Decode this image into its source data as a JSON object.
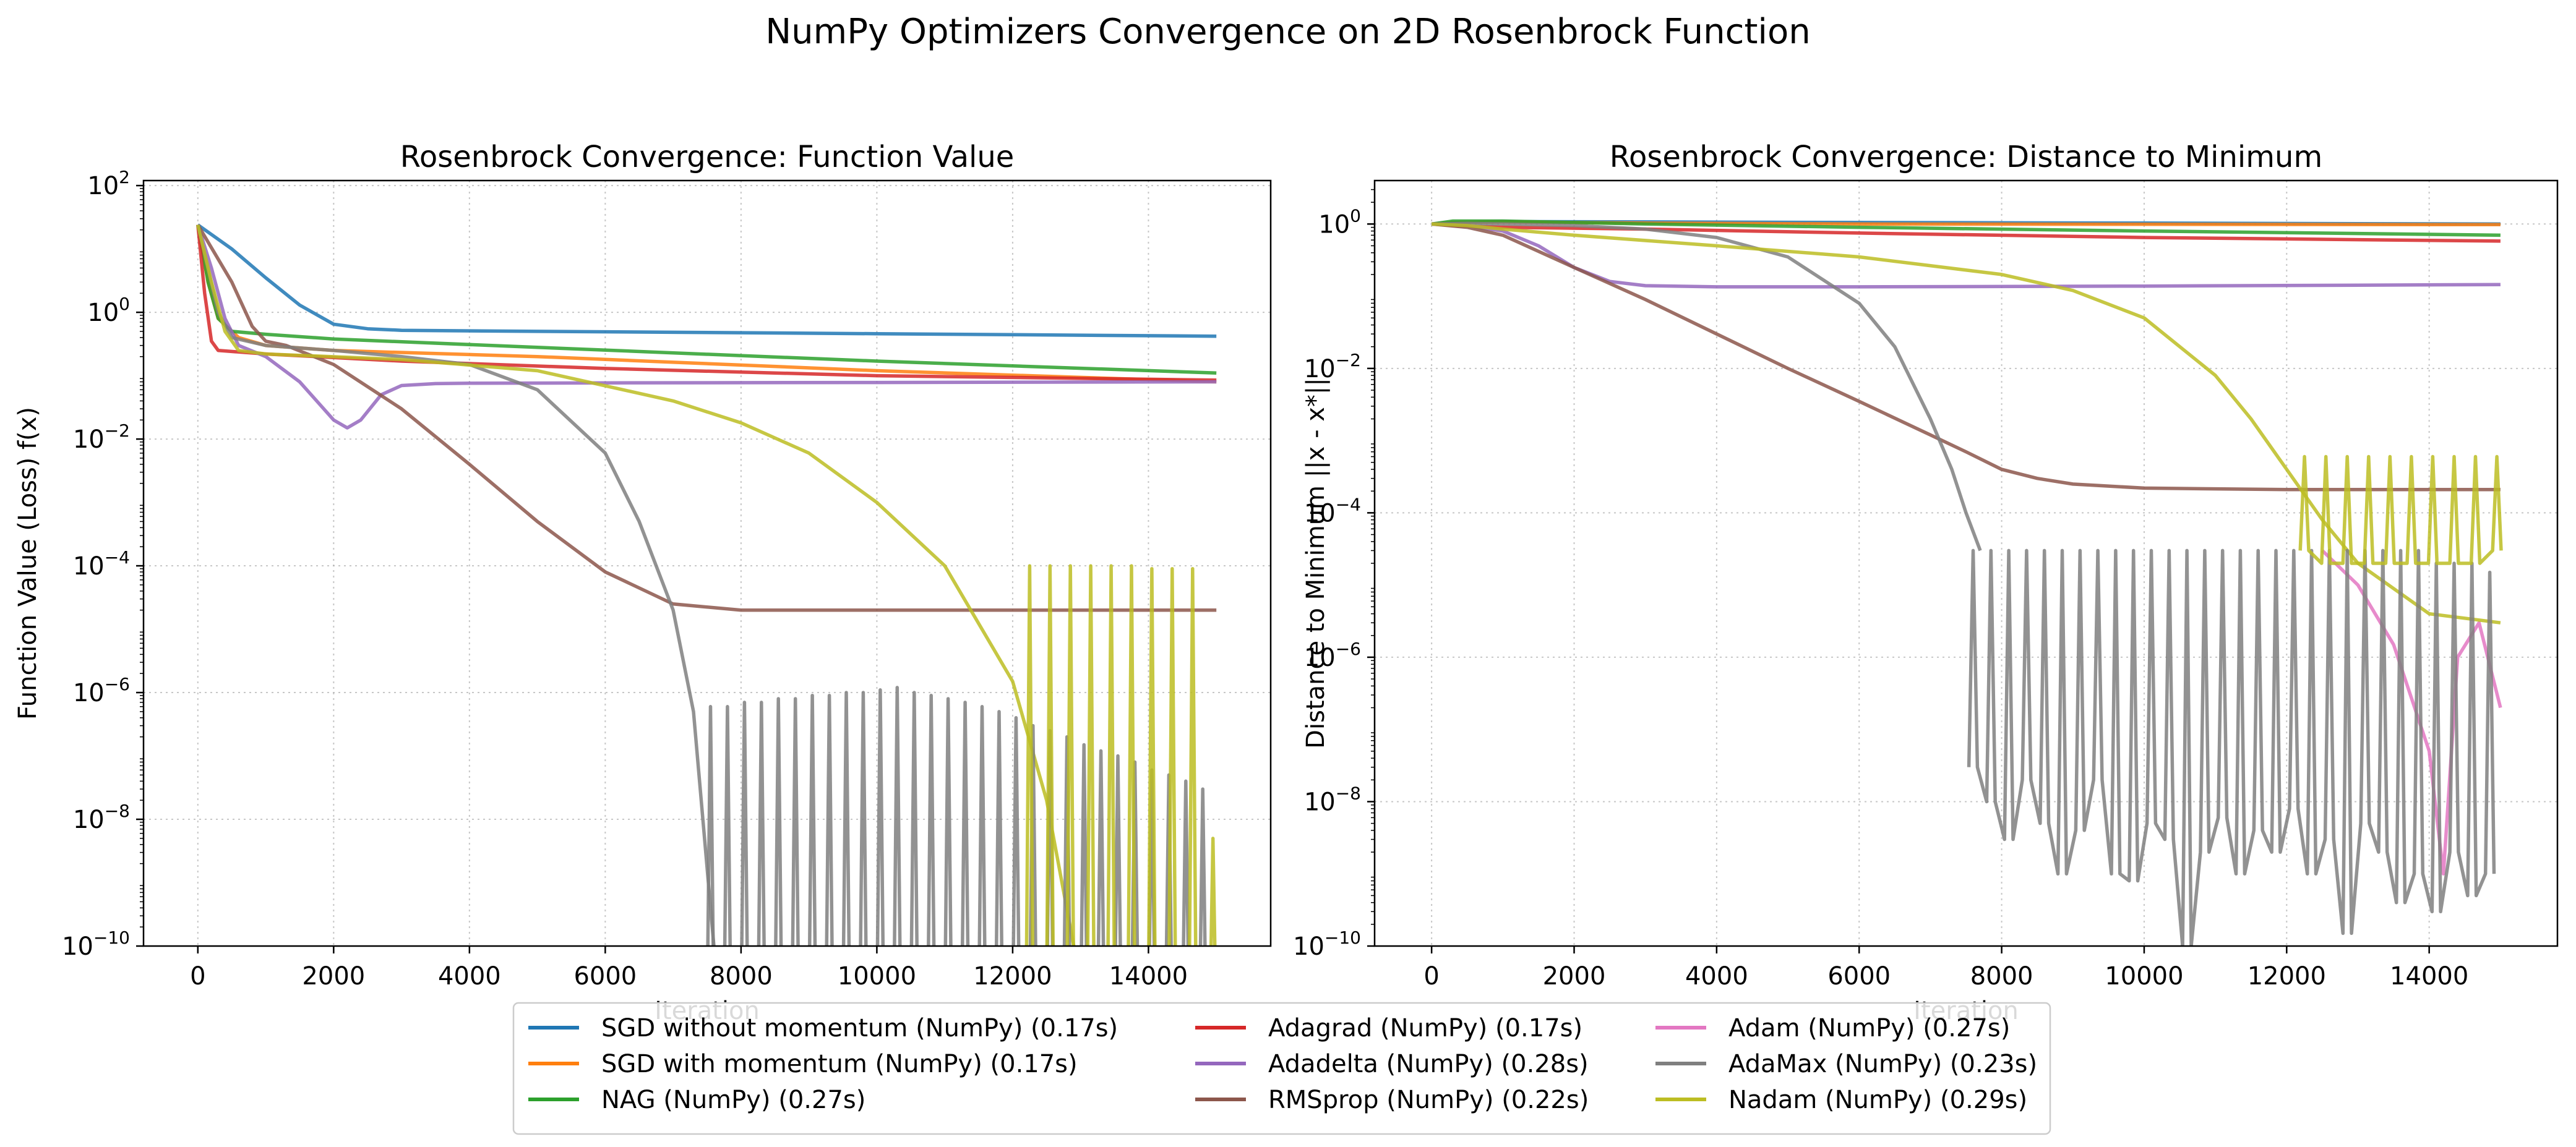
{
  "figure": {
    "suptitle": "NumPy Optimizers Convergence on 2D Rosenbrock Function"
  },
  "colors": {
    "SGD without momentum (NumPy) (0.17s)": "#1f77b4",
    "SGD with momentum (NumPy) (0.17s)": "#ff7f0e",
    "NAG (NumPy) (0.27s)": "#2ca02c",
    "Adagrad (NumPy) (0.17s)": "#d62728",
    "Adadelta (NumPy) (0.28s)": "#9467bd",
    "RMSprop (NumPy) (0.22s)": "#8c564b",
    "Adam (NumPy) (0.27s)": "#e377c2",
    "AdaMax (NumPy) (0.23s)": "#7f7f7f",
    "Nadam (NumPy) (0.29s)": "#bcbd22"
  },
  "legend": {
    "placement": "lower center, below plots",
    "columns": [
      [
        "SGD without momentum (NumPy) (0.17s)",
        "SGD with momentum (NumPy) (0.17s)",
        "NAG (NumPy) (0.27s)"
      ],
      [
        "Adagrad (NumPy) (0.17s)",
        "Adadelta (NumPy) (0.28s)",
        "RMSprop (NumPy) (0.22s)"
      ],
      [
        "Adam (NumPy) (0.27s)",
        "AdaMax (NumPy) (0.23s)",
        "Nadam (NumPy) (0.29s)"
      ]
    ]
  },
  "chart_data": [
    {
      "type": "line",
      "title": "Rosenbrock Convergence: Function Value",
      "xlabel": "Iteration",
      "ylabel": "Function Value (Loss) f(x)",
      "yscale": "log",
      "xlim": [
        -800,
        15800
      ],
      "ylim": [
        1e-10,
        120
      ],
      "xticks": [
        0,
        2000,
        4000,
        6000,
        8000,
        10000,
        12000,
        14000
      ],
      "yticks": [
        1e-10,
        1e-08,
        1e-06,
        0.0001,
        0.01,
        1,
        100
      ],
      "ytick_labels": [
        [
          "10",
          "−10"
        ],
        [
          "10",
          "−8"
        ],
        [
          "10",
          "−6"
        ],
        [
          "10",
          "−4"
        ],
        [
          "10",
          "−2"
        ],
        [
          "10",
          "0"
        ],
        [
          "10",
          "2"
        ]
      ],
      "grid": true,
      "series": [
        {
          "name": "SGD with momentum (NumPy) (0.17s)",
          "x": [
            0,
            150,
            300,
            600,
            1000,
            2000,
            5000,
            10000,
            15000
          ],
          "y": [
            24,
            3,
            0.8,
            0.4,
            0.3,
            0.25,
            0.2,
            0.12,
            0.08
          ]
        },
        {
          "name": "NAG (NumPy) (0.27s)",
          "x": [
            0,
            150,
            300,
            500,
            1000,
            2000,
            5000,
            10000,
            15000
          ],
          "y": [
            24,
            3,
            0.8,
            0.5,
            0.45,
            0.38,
            0.28,
            0.17,
            0.11
          ]
        },
        {
          "name": "Adagrad (NumPy) (0.17s)",
          "x": [
            0,
            100,
            200,
            300,
            1000,
            3000,
            6000,
            10000,
            15000
          ],
          "y": [
            24,
            2,
            0.35,
            0.25,
            0.22,
            0.17,
            0.13,
            0.1,
            0.085
          ]
        },
        {
          "name": "SGD without momentum (NumPy) (0.17s)",
          "x": [
            0,
            500,
            1000,
            1500,
            2000,
            2500,
            3000,
            5000,
            10000,
            15000
          ],
          "y": [
            24,
            10,
            3.5,
            1.3,
            0.65,
            0.55,
            0.52,
            0.5,
            0.46,
            0.42
          ]
        },
        {
          "name": "Adadelta (NumPy) (0.28s)",
          "x": [
            0,
            200,
            400,
            600,
            1000,
            1500,
            2000,
            2200,
            2400,
            2700,
            3000,
            3500,
            4000,
            6000,
            10000,
            15000
          ],
          "y": [
            24,
            5,
            0.8,
            0.3,
            0.2,
            0.08,
            0.02,
            0.015,
            0.02,
            0.05,
            0.07,
            0.075,
            0.076,
            0.077,
            0.078,
            0.08
          ]
        },
        {
          "name": "RMSprop (NumPy) (0.22s)",
          "x": [
            0,
            500,
            800,
            1000,
            1300,
            2000,
            3000,
            4000,
            5000,
            6000,
            7000,
            8000,
            10000,
            15000
          ],
          "y": [
            24,
            3,
            0.6,
            0.35,
            0.3,
            0.15,
            0.03,
            0.004,
            0.0005,
            8e-05,
            2.5e-05,
            2e-05,
            2e-05,
            2e-05
          ]
        },
        {
          "name": "AdaMax (NumPy) (0.23s)",
          "x": [
            0,
            300,
            500,
            1000,
            2000,
            3000,
            4000,
            5000,
            6000,
            6500,
            7000,
            7300,
            7600
          ],
          "y": [
            24,
            1,
            0.4,
            0.3,
            0.25,
            0.2,
            0.15,
            0.06,
            0.006,
            0.0005,
            2e-05,
            5e-07,
            1e-10
          ]
        },
        {
          "name": "Nadam (NumPy) (0.29s)",
          "x": [
            0,
            200,
            400,
            600,
            1000,
            3000,
            5000,
            7000,
            8000,
            9000,
            10000,
            11000,
            12000,
            12500,
            12900
          ],
          "y": [
            24,
            3,
            0.5,
            0.25,
            0.22,
            0.18,
            0.12,
            0.04,
            0.018,
            0.006,
            0.001,
            0.0001,
            1.5e-06,
            2e-08,
            1e-10
          ]
        }
      ],
      "spikes": [
        {
          "name": "AdaMax (NumPy) (0.23s)",
          "x": [
            7550,
            7800,
            8050,
            8300,
            8550,
            8800,
            9050,
            9300,
            9550,
            9800,
            10050,
            10300,
            10550,
            10800,
            11050,
            11300,
            11550,
            11800,
            12050,
            12300,
            12550,
            12800,
            13050,
            13300,
            13550,
            13800,
            14050,
            14300,
            14550,
            14800
          ],
          "y": [
            6e-07,
            6e-07,
            7e-07,
            7e-07,
            8e-07,
            8e-07,
            9e-07,
            9e-07,
            1e-06,
            1e-06,
            1.1e-06,
            1.2e-06,
            1e-06,
            9e-07,
            8e-07,
            7e-07,
            6e-07,
            5e-07,
            4e-07,
            3e-07,
            2.5e-07,
            2e-07,
            1.5e-07,
            1.2e-07,
            1e-07,
            8e-08,
            6e-08,
            5e-08,
            4e-08,
            3e-08
          ]
        },
        {
          "name": "Nadam (NumPy) (0.29s)",
          "x": [
            12250,
            12550,
            12850,
            13150,
            13450,
            13750,
            14050,
            14350,
            14650,
            14950
          ],
          "y": [
            0.0001,
            0.0001,
            0.0001,
            0.0001,
            0.0001,
            0.0001,
            9e-05,
            9e-05,
            9e-05,
            5e-09
          ]
        }
      ]
    },
    {
      "type": "line",
      "title": "Rosenbrock Convergence: Distance to Minimum",
      "xlabel": "Iteration",
      "ylabel": "Distance to Minimum ||x - x*||",
      "yscale": "log",
      "xlim": [
        -800,
        15800
      ],
      "ylim": [
        1e-10,
        4
      ],
      "xticks": [
        0,
        2000,
        4000,
        6000,
        8000,
        10000,
        12000,
        14000
      ],
      "yticks": [
        1e-10,
        1e-08,
        1e-06,
        0.0001,
        0.01,
        1
      ],
      "ytick_labels": [
        [
          "10",
          "−10"
        ],
        [
          "10",
          "−8"
        ],
        [
          "10",
          "−6"
        ],
        [
          "10",
          "−4"
        ],
        [
          "10",
          "−2"
        ],
        [
          "10",
          "0"
        ]
      ],
      "grid": true,
      "series": [
        {
          "name": "SGD without momentum (NumPy) (0.17s)",
          "x": [
            0,
            300,
            1000,
            3000,
            6000,
            10000,
            15000
          ],
          "y": [
            1.0,
            1.05,
            1.08,
            1.07,
            1.05,
            1.03,
            1.0
          ]
        },
        {
          "name": "SGD with momentum (NumPy) (0.17s)",
          "x": [
            0,
            300,
            1000,
            3000,
            6000,
            10000,
            15000
          ],
          "y": [
            1.0,
            1.05,
            1.07,
            1.03,
            1.0,
            0.99,
            0.98
          ]
        },
        {
          "name": "NAG (NumPy) (0.27s)",
          "x": [
            0,
            300,
            1000,
            3000,
            6000,
            10000,
            15000
          ],
          "y": [
            1.0,
            1.1,
            1.1,
            1.0,
            0.9,
            0.8,
            0.7
          ]
        },
        {
          "name": "Adagrad (NumPy) (0.17s)",
          "x": [
            0,
            300,
            1000,
            3000,
            6000,
            10000,
            15000
          ],
          "y": [
            1.0,
            0.95,
            0.9,
            0.85,
            0.75,
            0.65,
            0.58
          ]
        },
        {
          "name": "Adadelta (NumPy) (0.28s)",
          "x": [
            0,
            500,
            1000,
            1500,
            2000,
            2500,
            3000,
            4000,
            6000,
            10000,
            15000
          ],
          "y": [
            1.0,
            0.95,
            0.8,
            0.5,
            0.25,
            0.16,
            0.14,
            0.135,
            0.135,
            0.138,
            0.145
          ]
        },
        {
          "name": "RMSprop (NumPy) (0.22s)",
          "x": [
            0,
            500,
            1000,
            2000,
            3000,
            4000,
            5000,
            6000,
            7000,
            7500,
            8000,
            8500,
            9000,
            10000,
            12000,
            15000
          ],
          "y": [
            1.0,
            0.9,
            0.7,
            0.25,
            0.09,
            0.03,
            0.01,
            0.0035,
            0.0012,
            0.0007,
            0.0004,
            0.0003,
            0.00025,
            0.00022,
            0.00021,
            0.00021
          ]
        },
        {
          "name": "Adam (NumPy) (0.27s)",
          "x": [
            12500,
            13000,
            13500,
            14000,
            14200,
            14400,
            14700,
            15000
          ],
          "y": [
            3e-05,
            1e-05,
            1.5e-06,
            5e-08,
            1e-09,
            1e-06,
            3e-06,
            2e-07
          ]
        },
        {
          "name": "AdaMax (NumPy) (0.23s)",
          "x": [
            0,
            500,
            1000,
            2000,
            3000,
            4000,
            5000,
            6000,
            6500,
            7000,
            7300,
            7500,
            7700
          ],
          "y": [
            1.0,
            1.02,
            1.0,
            0.95,
            0.85,
            0.65,
            0.35,
            0.08,
            0.02,
            0.002,
            0.0004,
            0.0001,
            3e-05
          ]
        },
        {
          "name": "Nadam (NumPy) (0.29s)",
          "x": [
            0,
            500,
            1000,
            2000,
            4000,
            6000,
            8000,
            9000,
            10000,
            11000,
            11500,
            12000,
            12500,
            13000,
            14000,
            15000
          ],
          "y": [
            1.0,
            0.95,
            0.85,
            0.7,
            0.5,
            0.35,
            0.2,
            0.12,
            0.05,
            0.008,
            0.002,
            0.0004,
            8e-05,
            2e-05,
            4e-06,
            3e-06
          ]
        }
      ],
      "spikes": [
        {
          "name": "AdaMax (NumPy) (0.23s)",
          "x": [
            7600,
            7850,
            8100,
            8350,
            8600,
            8850,
            9100,
            9350,
            9600,
            9850,
            10100,
            10350,
            10600,
            10850,
            11100,
            11350,
            11600,
            11850,
            12100,
            12350,
            12600,
            12850,
            13100,
            13350,
            13600,
            13850,
            14100,
            14350,
            14600,
            14850
          ],
          "y": [
            3e-05,
            3e-05,
            3e-05,
            3e-05,
            3e-05,
            3e-05,
            3e-05,
            3e-05,
            3e-05,
            3e-05,
            3e-05,
            3e-05,
            3e-05,
            3e-05,
            3e-05,
            3e-05,
            3e-05,
            3e-05,
            3e-05,
            3e-05,
            3e-05,
            3e-05,
            3e-05,
            3e-05,
            3e-05,
            3e-05,
            2e-05,
            2e-05,
            2e-05,
            1.5e-05
          ],
          "lows": [
            3e-08,
            1e-08,
            3e-09,
            2e-08,
            5e-09,
            1e-09,
            4e-09,
            2e-08,
            1e-09,
            8e-10,
            5e-09,
            3e-09,
            1e-10,
            2e-09,
            6e-09,
            1e-09,
            4e-09,
            2e-09,
            8e-09,
            1e-09,
            3e-09,
            1.5e-10,
            5e-09,
            2e-09,
            4e-10,
            1e-09,
            3e-10,
            2e-09,
            5e-10,
            1e-09
          ]
        },
        {
          "name": "Nadam (NumPy) (0.29s)",
          "x": [
            12250,
            12550,
            12850,
            13150,
            13450,
            13750,
            14050,
            14350,
            14650,
            14950
          ],
          "y": [
            0.0006,
            0.0006,
            0.0006,
            0.0006,
            0.0006,
            0.0006,
            0.0006,
            0.0006,
            0.0006,
            0.0006
          ],
          "lows": [
            3e-05,
            2e-05,
            2e-05,
            2e-05,
            2e-05,
            2e-05,
            2e-05,
            2e-05,
            2e-05,
            3e-05
          ]
        }
      ]
    }
  ]
}
